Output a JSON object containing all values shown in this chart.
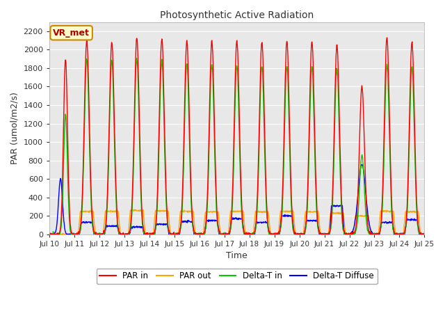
{
  "title": "Photosynthetic Active Radiation",
  "xlabel": "Time",
  "ylabel": "PAR (umol/m2/s)",
  "ylim": [
    0,
    2300
  ],
  "xlim": [
    0,
    15
  ],
  "yticks": [
    0,
    200,
    400,
    600,
    800,
    1000,
    1200,
    1400,
    1600,
    1800,
    2000,
    2200
  ],
  "xtick_labels": [
    "Jul 10",
    "Jul 11",
    "Jul 12",
    "Jul 13",
    "Jul 14",
    "Jul 15",
    "Jul 16",
    "Jul 17",
    "Jul 18",
    "Jul 19",
    "Jul 20",
    "Jul 21",
    "Jul 22",
    "Jul 23",
    "Jul 24",
    "Jul 25"
  ],
  "label_box": "VR_met",
  "legend": [
    "PAR in",
    "PAR out",
    "Delta-T in",
    "Delta-T Diffuse"
  ],
  "colors": [
    "#ff0000",
    "#ffa500",
    "#00cc00",
    "#0000ff"
  ],
  "fig_facecolor": "#ffffff",
  "ax_facecolor": "#e8e8e8",
  "grid_color": "#ffffff"
}
